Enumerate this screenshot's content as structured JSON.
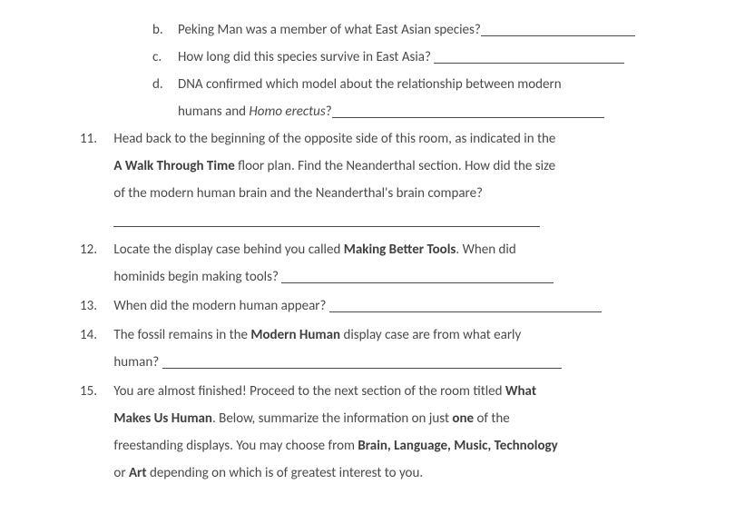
{
  "colors": {
    "text": "#4a4a4a",
    "background": "#ffffff",
    "underline": "#4a4a4a"
  },
  "typography": {
    "family": "Calibri",
    "size_pt": 11,
    "line_height": 2.0
  },
  "sub": {
    "b": {
      "label": "b.",
      "text": "Peking Man was a member of what East Asian species?"
    },
    "c": {
      "label": "c.",
      "text": "How long did this species survive in East Asia?"
    },
    "d": {
      "label": "d.",
      "t1": "DNA confirmed which model about the relationship between modern",
      "t2a": "humans and ",
      "t2b": "Homo erectus",
      "t2c": "?"
    }
  },
  "q11": {
    "num": "11.",
    "l1a": "Head back to the beginning of the opposite side of this room, as indicated in the",
    "l2a": "A Walk Through Time",
    "l2b": " floor plan. Find the Neanderthal section. How did the size",
    "l3": "of the modern human brain and the Neanderthal's brain compare?"
  },
  "q12": {
    "num": "12.",
    "l1a": "Locate the display case behind you called ",
    "l1b": "Making Better Tools",
    "l1c": ". When did",
    "l2": "hominids begin making tools?"
  },
  "q13": {
    "num": "13.",
    "text": "When did the modern human appear?"
  },
  "q14": {
    "num": "14.",
    "l1a": "The fossil remains in the ",
    "l1b": "Modern Human",
    "l1c": " display case are from what early",
    "l2": "human?"
  },
  "q15": {
    "num": "15.",
    "l1a": "You are almost finished! Proceed to the next section of the room titled ",
    "l1b": "What",
    "l2a": "Makes Us Human",
    "l2b": ". Below, summarize the information on just ",
    "l2c": "one",
    "l2d": " of the",
    "l3a": "freestanding displays. You may choose from ",
    "l3b": "Brain, Language, Music, Technology",
    "l4a": "or ",
    "l4b": "Art",
    "l4c": " depending on which is of greatest interest to you."
  }
}
